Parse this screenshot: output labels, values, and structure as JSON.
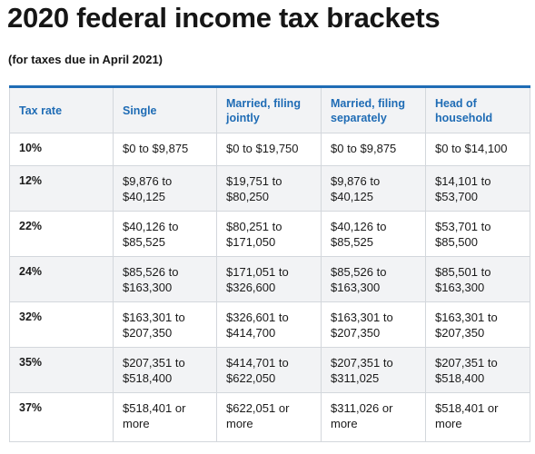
{
  "title": "2020 federal income tax brackets",
  "subtitle": "(for taxes due in April 2021)",
  "colors": {
    "accent": "#1f6cb5",
    "stripe": "#f2f3f5",
    "border": "#d3d7dc"
  },
  "table": {
    "headers": [
      "Tax rate",
      "Single",
      "Married, filing jointly",
      "Married, filing separately",
      "Head of household"
    ],
    "rows": [
      [
        "10%",
        "$0 to $9,875",
        "$0 to $19,750",
        "$0 to $9,875",
        "$0 to $14,100"
      ],
      [
        "12%",
        "$9,876 to $40,125",
        "$19,751 to $80,250",
        "$9,876 to $40,125",
        "$14,101 to $53,700"
      ],
      [
        "22%",
        "$40,126 to $85,525",
        "$80,251 to $171,050",
        "$40,126 to $85,525",
        "$53,701 to $85,500"
      ],
      [
        "24%",
        "$85,526 to $163,300",
        "$171,051 to $326,600",
        "$85,526 to $163,300",
        "$85,501 to $163,300"
      ],
      [
        "32%",
        "$163,301 to $207,350",
        "$326,601 to $414,700",
        "$163,301 to $207,350",
        "$163,301 to $207,350"
      ],
      [
        "35%",
        "$207,351 to $518,400",
        "$414,701 to $622,050",
        "$207,351 to $311,025",
        "$207,351 to $518,400"
      ],
      [
        "37%",
        "$518,401 or more",
        "$622,051 or more",
        "$311,026 or more",
        "$518,401 or more"
      ]
    ]
  }
}
